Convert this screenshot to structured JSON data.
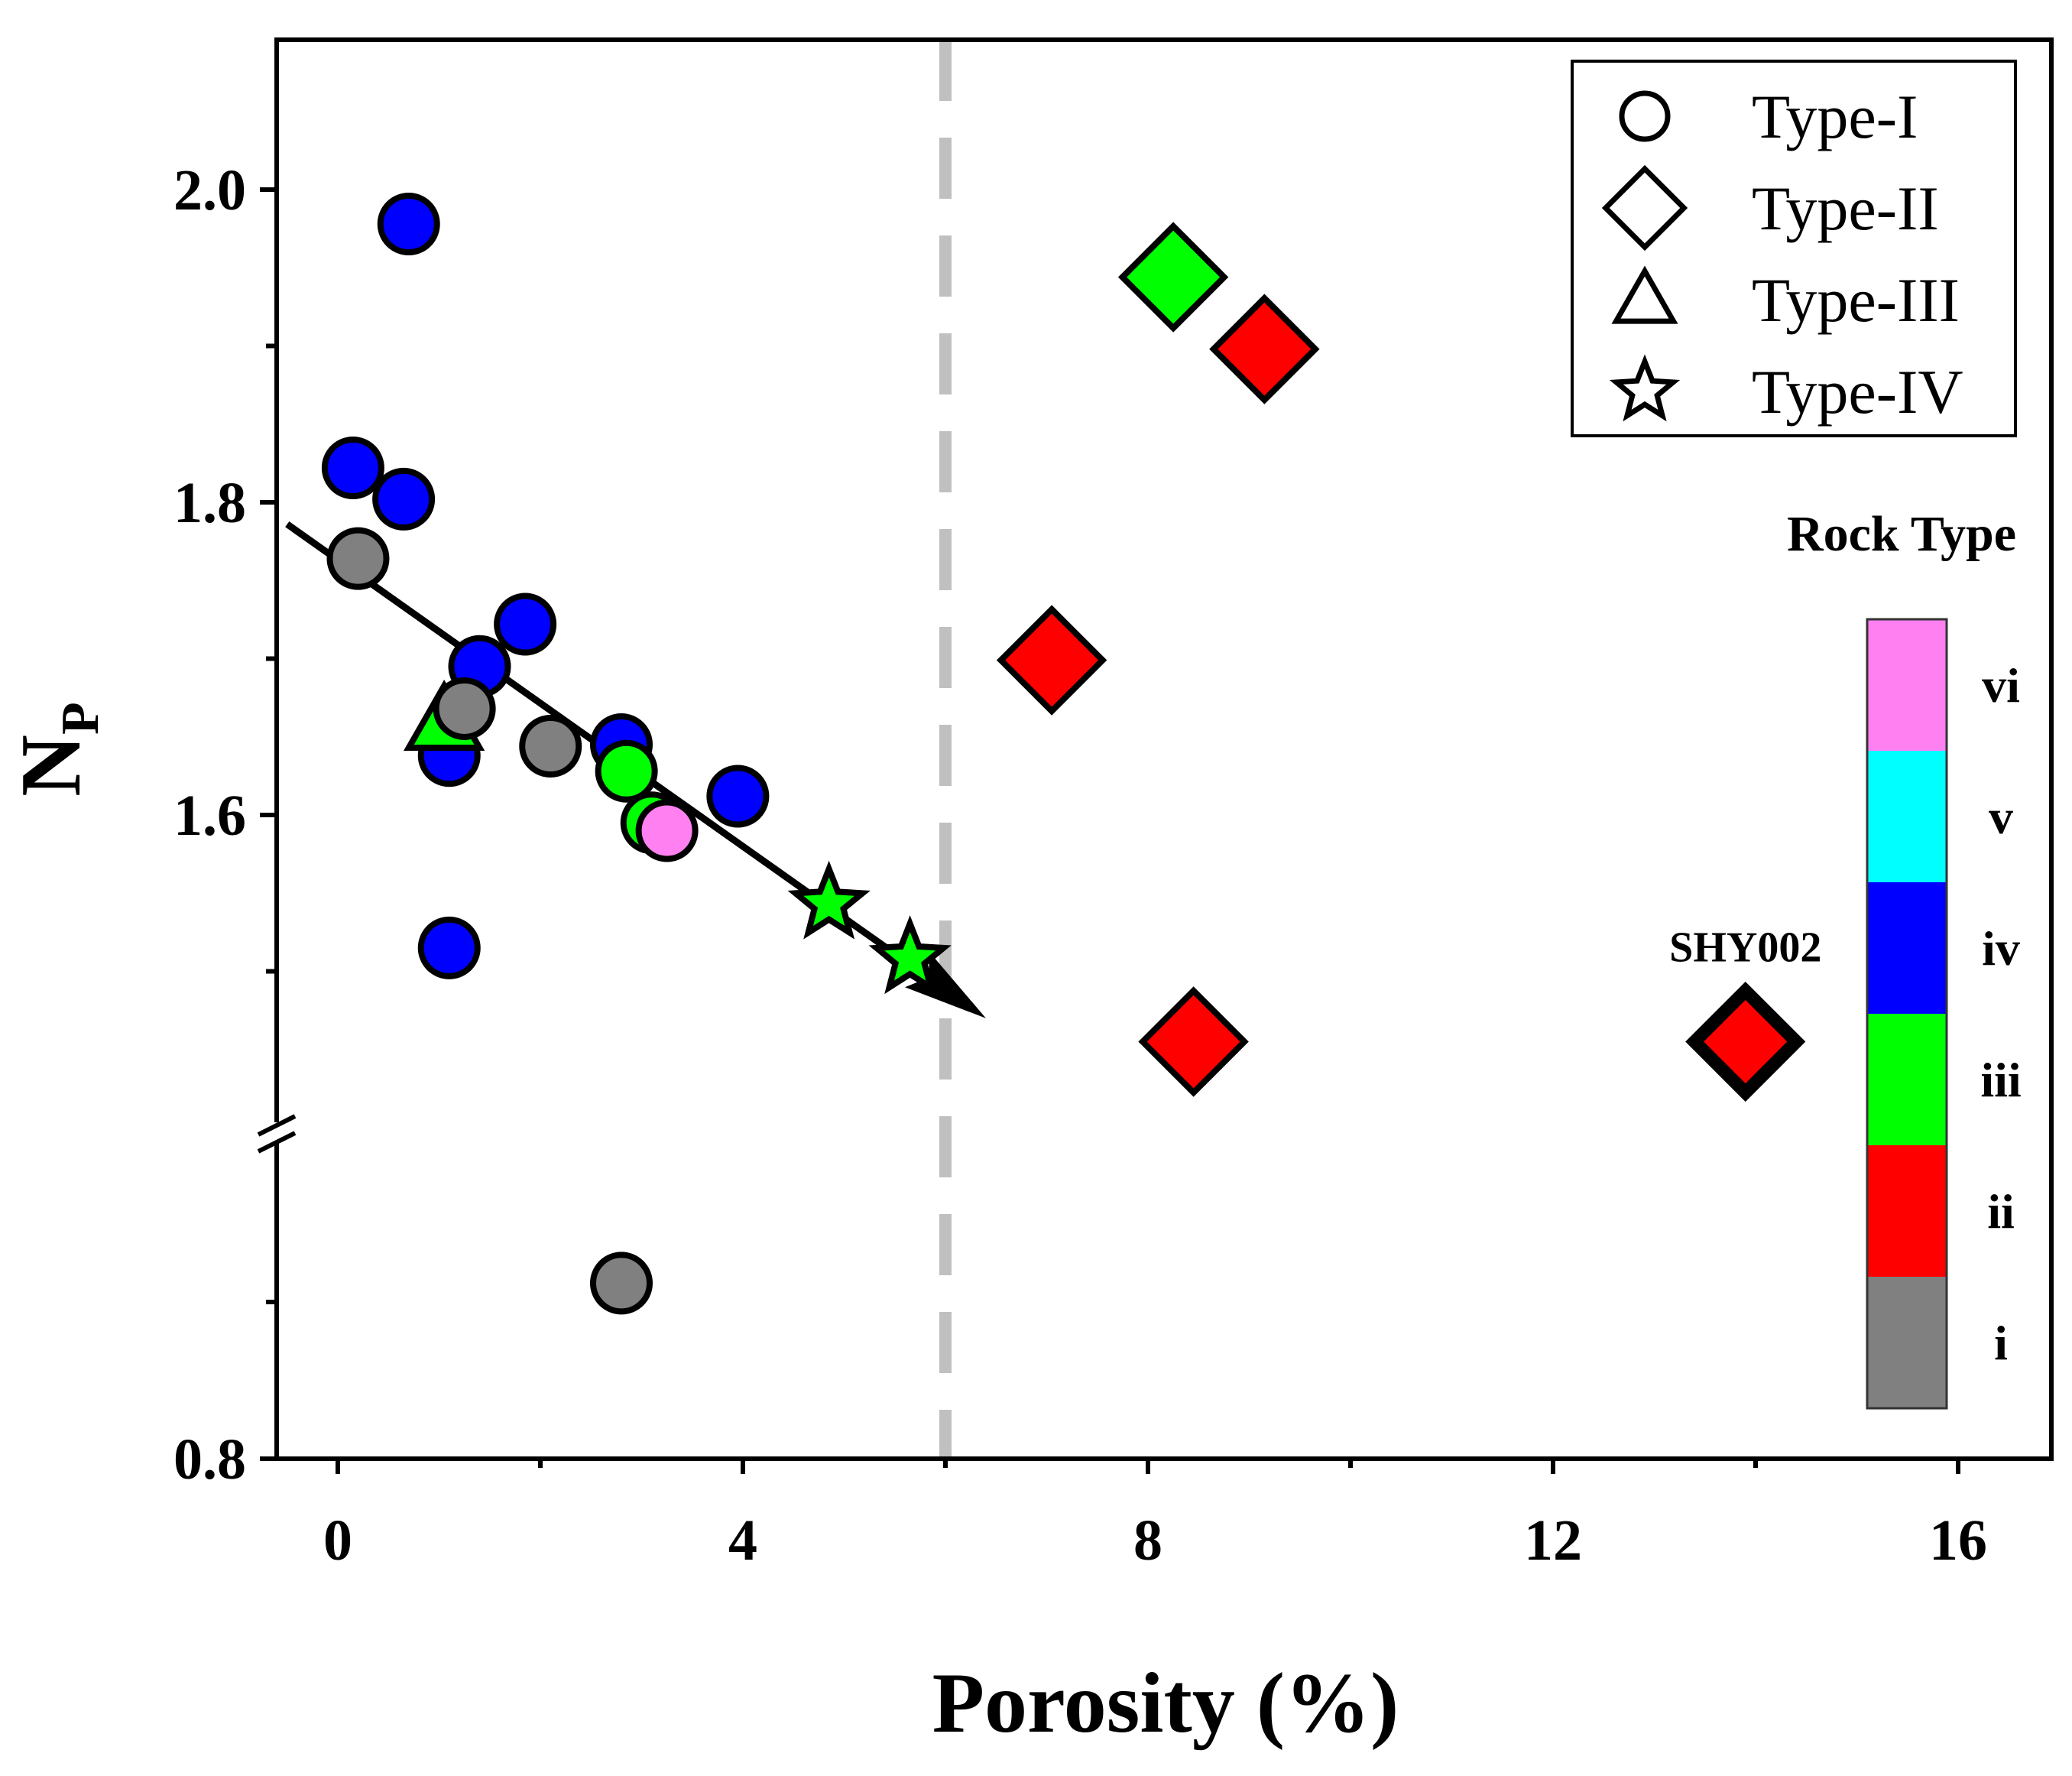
{
  "chart_data": {
    "type": "scatter",
    "xlabel": "Porosity (%)",
    "ylabel": "N",
    "ylabel_sub": "P",
    "xlim": [
      -0.5,
      17.3
    ],
    "xticks": [
      "0",
      "4",
      "8",
      "12",
      "16"
    ],
    "xtick_values": [
      0,
      4,
      8,
      12,
      16
    ],
    "y_upper": {
      "range": [
        1.41,
        2.1
      ],
      "ticks": [
        "1.6",
        "1.8",
        "2.0"
      ],
      "tick_values": [
        1.6,
        1.8,
        2.0
      ]
    },
    "y_lower": {
      "range": [
        0.8,
        1.06
      ],
      "ticks": [
        "0.8"
      ],
      "tick_values": [
        0.8
      ]
    },
    "axis_break": true,
    "cutoff_line_x": 6,
    "trend_arrow": {
      "from": [
        -0.5,
        1.786
      ],
      "to": [
        6.4,
        1.47
      ]
    },
    "legend": [
      {
        "label": "Type-I",
        "marker": "circle"
      },
      {
        "label": "Type-II",
        "marker": "diamond"
      },
      {
        "label": "Type-III",
        "marker": "triangle"
      },
      {
        "label": "Type-IV",
        "marker": "star"
      }
    ],
    "colorbar": {
      "title": "Rock Type",
      "classes": [
        {
          "label": "vi",
          "color": "#ff80f0"
        },
        {
          "label": "v",
          "color": "#00ffff"
        },
        {
          "label": "iv",
          "color": "#0000ff"
        },
        {
          "label": "iii",
          "color": "#00ff00"
        },
        {
          "label": "ii",
          "color": "#ff0000"
        },
        {
          "label": "i",
          "color": "#808080"
        }
      ]
    },
    "annotation": {
      "text": "SHY002",
      "x": 13.9,
      "y": 1.455
    },
    "points": [
      {
        "x": 0.7,
        "y": 1.978,
        "marker": "circle",
        "rock": "iv"
      },
      {
        "x": 0.15,
        "y": 1.822,
        "marker": "circle",
        "rock": "iv"
      },
      {
        "x": 0.65,
        "y": 1.802,
        "marker": "circle",
        "rock": "iv"
      },
      {
        "x": 1.85,
        "y": 1.722,
        "marker": "circle",
        "rock": "iv"
      },
      {
        "x": 1.4,
        "y": 1.695,
        "marker": "circle",
        "rock": "iv"
      },
      {
        "x": 1.1,
        "y": 1.638,
        "marker": "circle",
        "rock": "iv"
      },
      {
        "x": 2.8,
        "y": 1.645,
        "marker": "circle",
        "rock": "iv"
      },
      {
        "x": 3.95,
        "y": 1.612,
        "marker": "circle",
        "rock": "iv"
      },
      {
        "x": 1.1,
        "y": 1.515,
        "marker": "circle",
        "rock": "iv"
      },
      {
        "x": 1.05,
        "y": 1.66,
        "marker": "triangle",
        "rock": "iii"
      },
      {
        "x": 2.85,
        "y": 1.628,
        "marker": "circle",
        "rock": "iii"
      },
      {
        "x": 3.1,
        "y": 1.595,
        "marker": "circle",
        "rock": "iii"
      },
      {
        "x": 0.2,
        "y": 1.764,
        "marker": "circle",
        "rock": "i"
      },
      {
        "x": 1.25,
        "y": 1.668,
        "marker": "circle",
        "rock": "i"
      },
      {
        "x": 2.1,
        "y": 1.644,
        "marker": "circle",
        "rock": "i"
      },
      {
        "x": 2.8,
        "y": 0.912,
        "marker": "circle",
        "rock": "i"
      },
      {
        "x": 3.25,
        "y": 1.59,
        "marker": "circle",
        "rock": "vi"
      },
      {
        "x": 4.85,
        "y": 1.543,
        "marker": "star",
        "rock": "iii"
      },
      {
        "x": 5.65,
        "y": 1.508,
        "marker": "star",
        "rock": "iii"
      },
      {
        "x": 8.25,
        "y": 1.944,
        "marker": "diamond",
        "rock": "iii"
      },
      {
        "x": 9.15,
        "y": 1.898,
        "marker": "diamond",
        "rock": "ii"
      },
      {
        "x": 7.05,
        "y": 1.699,
        "marker": "diamond",
        "rock": "ii"
      },
      {
        "x": 8.45,
        "y": 1.455,
        "marker": "diamond",
        "rock": "ii"
      },
      {
        "x": 13.9,
        "y": 1.455,
        "marker": "diamond",
        "rock": "ii",
        "highlight": true
      }
    ]
  }
}
